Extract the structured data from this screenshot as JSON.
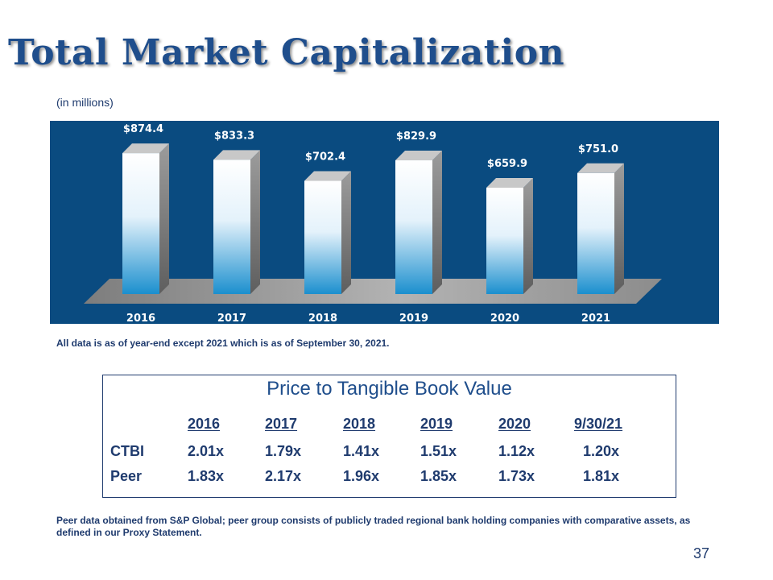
{
  "slide": {
    "title": "Total Market Capitalization",
    "units_note": "(in millions)",
    "footnote_1": "All data is as of year-end except 2021 which is as of September 30, 2021.",
    "footnote_2": "Peer data obtained from S&P Global; peer group consists of publicly traded regional bank holding companies with comparative assets, as defined in our Proxy Statement.",
    "page_number": "37"
  },
  "colors": {
    "panel_bg": "#0a4b80",
    "title": "#1f4e8c",
    "text": "#1f3b6e",
    "bar_top": "#ffffff",
    "bar_bottom": "#1b8fce",
    "bar_side": "#8a8a8a",
    "floor": "#9a9a9a"
  },
  "chart_data": {
    "type": "bar",
    "categories": [
      "2016",
      "2017",
      "2018",
      "2019",
      "2020",
      "2021"
    ],
    "values": [
      874.4,
      833.3,
      702.4,
      829.9,
      659.9,
      751.0
    ],
    "data_labels": [
      "$874.4",
      "$833.3",
      "$702.4",
      "$829.9",
      "$659.9",
      "$751.0"
    ],
    "ylim": [
      0,
      900
    ],
    "grid": false,
    "legend": "none"
  },
  "ptbv": {
    "title": "Price to Tangible Book Value",
    "headers": [
      "2016",
      "2017",
      "2018",
      "2019",
      "2020",
      "9/30/21"
    ],
    "rows": [
      {
        "label": "CTBI",
        "values": [
          "2.01x",
          "1.79x",
          "1.41x",
          "1.51x",
          "1.12x",
          "1.20x"
        ]
      },
      {
        "label": "Peer",
        "values": [
          "1.83x",
          "2.17x",
          "1.96x",
          "1.85x",
          "1.73x",
          "1.81x"
        ]
      }
    ]
  }
}
